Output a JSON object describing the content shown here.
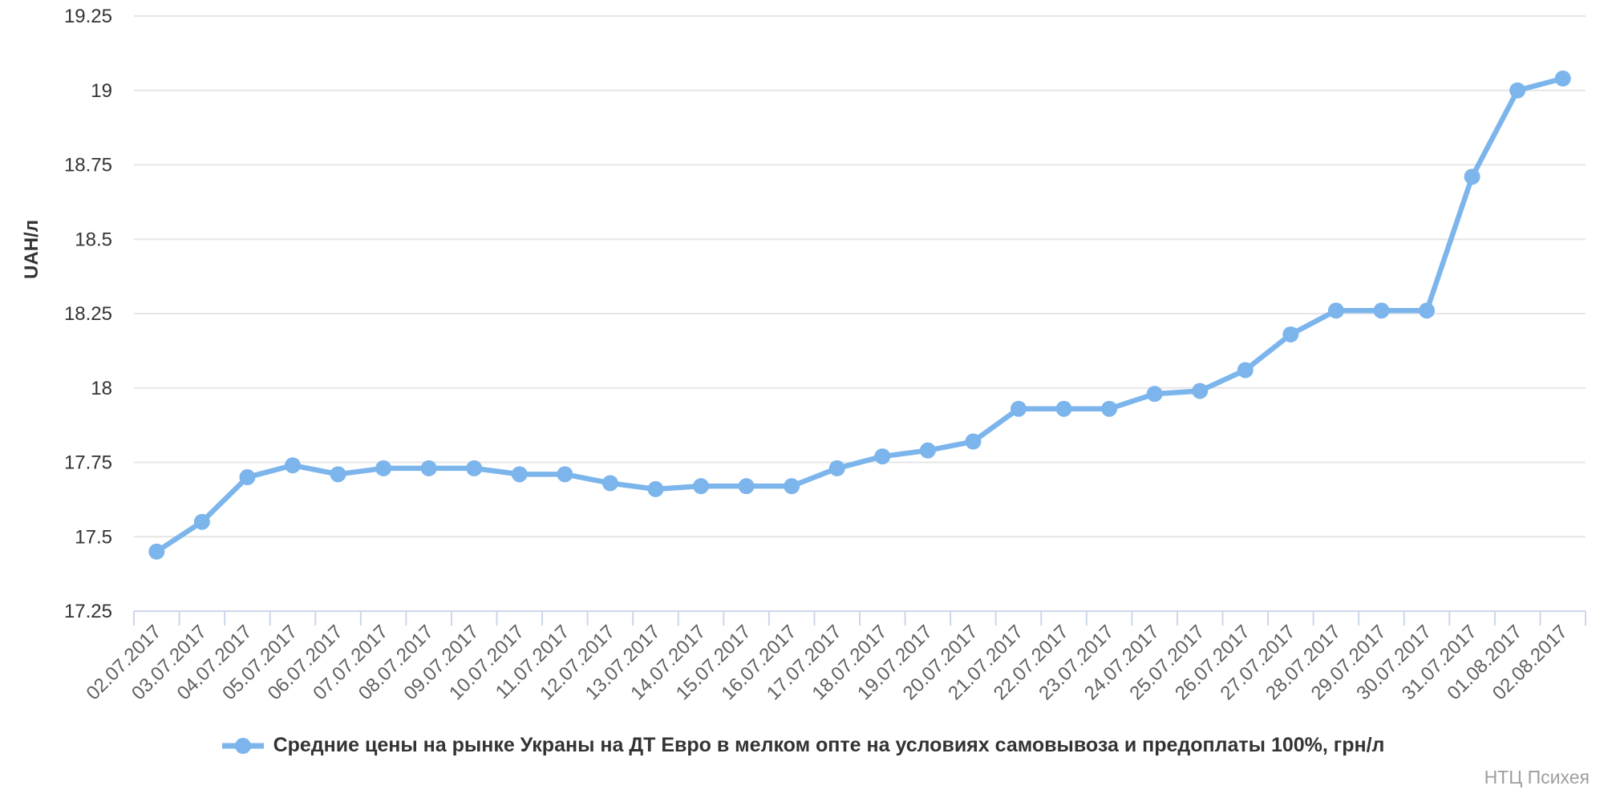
{
  "chart_data": {
    "type": "line",
    "title": "",
    "categories": [
      "02.07.2017",
      "03.07.2017",
      "04.07.2017",
      "05.07.2017",
      "06.07.2017",
      "07.07.2017",
      "08.07.2017",
      "09.07.2017",
      "10.07.2017",
      "11.07.2017",
      "12.07.2017",
      "13.07.2017",
      "14.07.2017",
      "15.07.2017",
      "16.07.2017",
      "17.07.2017",
      "18.07.2017",
      "19.07.2017",
      "20.07.2017",
      "21.07.2017",
      "22.07.2017",
      "23.07.2017",
      "24.07.2017",
      "25.07.2017",
      "26.07.2017",
      "27.07.2017",
      "28.07.2017",
      "29.07.2017",
      "30.07.2017",
      "31.07.2017",
      "01.08.2017",
      "02.08.2017"
    ],
    "series": [
      {
        "name": "Средние цены на рынке Украны на ДТ Евро в мелком опте на условиях самовывоза и предоплаты 100%, грн/л",
        "values": [
          17.45,
          17.55,
          17.7,
          17.74,
          17.71,
          17.73,
          17.73,
          17.73,
          17.71,
          17.71,
          17.68,
          17.66,
          17.67,
          17.67,
          17.67,
          17.73,
          17.77,
          17.79,
          17.82,
          17.93,
          17.93,
          17.93,
          17.98,
          17.99,
          18.06,
          18.18,
          18.26,
          18.26,
          18.26,
          18.71,
          19.0,
          19.04
        ]
      }
    ],
    "xlabel": "",
    "ylabel": "UAH/л",
    "ylim": [
      17.25,
      19.25
    ],
    "yticks": [
      {
        "v": 17.25,
        "label": "17.25"
      },
      {
        "v": 17.5,
        "label": "17.5"
      },
      {
        "v": 17.75,
        "label": "17.75"
      },
      {
        "v": 18,
        "label": "18"
      },
      {
        "v": 18.25,
        "label": "18.25"
      },
      {
        "v": 18.5,
        "label": "18.5"
      },
      {
        "v": 18.75,
        "label": "18.75"
      },
      {
        "v": 19,
        "label": "19"
      },
      {
        "v": 19.25,
        "label": "19.25"
      }
    ],
    "grid": true,
    "legend_position": "bottom",
    "x_label_rotation": -45
  },
  "y_axis": {
    "title": "UAH/л"
  },
  "legend": {
    "label": "Средние цены на рынке Украны на ДТ Евро в мелком опте на условиях самовывоза и предоплаты 100%, грн/л"
  },
  "footer": {
    "credit": "НТЦ Психея"
  },
  "colors": {
    "series_line": "#7cb5ec",
    "grid_line": "#e6e6e6",
    "axis_line": "#ccd6eb",
    "x_tick_label": "#606060",
    "y_tick_label": "#333333",
    "legend_text": "#333333",
    "footer_text": "#9e9e9e",
    "background": "#ffffff"
  }
}
